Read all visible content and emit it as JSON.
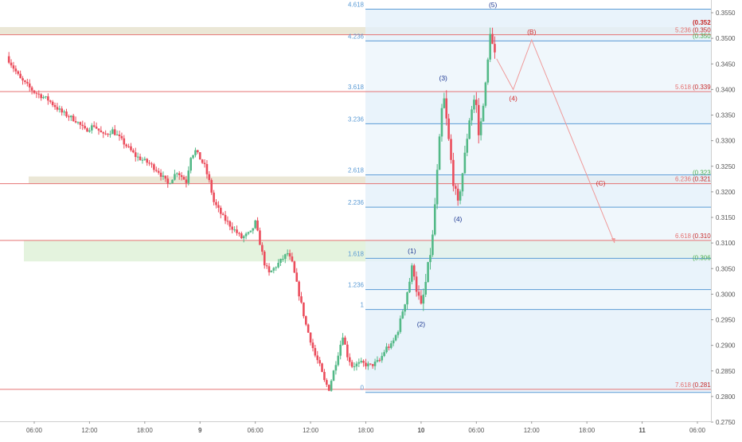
{
  "colors": {
    "up": "#53b987",
    "down": "#eb4d5c",
    "fib": "#5b9bd5",
    "fib_fill": "#e3f0fa",
    "red_line": "#e57373",
    "band_tan": "#e8e3cf",
    "band_green": "#dff1d8",
    "wave_main": "#1f3a93",
    "wave_corr": "#d32f2f",
    "axis_text": "#555555"
  },
  "chart_data": {
    "type": "candlestick",
    "ylim": [
      0.276,
      0.356
    ],
    "y_ticks": [
      0.355,
      0.35,
      0.345,
      0.34,
      0.335,
      0.33,
      0.325,
      0.32,
      0.315,
      0.31,
      0.305,
      0.3,
      0.295,
      0.29,
      0.285,
      0.28,
      0.275
    ],
    "x_ticks": [
      {
        "label": "06:00",
        "t": 0.0
      },
      {
        "label": "12:00",
        "t": 6.0
      },
      {
        "label": "18:00",
        "t": 12.0
      },
      {
        "label": "9",
        "t": 18.0
      },
      {
        "label": "06:00",
        "t": 24.0
      },
      {
        "label": "12:00",
        "t": 30.0
      },
      {
        "label": "18:00",
        "t": 36.0
      },
      {
        "label": "10",
        "t": 42.0
      },
      {
        "label": "06:00",
        "t": 48.0
      },
      {
        "label": "12:00",
        "t": 54.0
      },
      {
        "label": "18:00",
        "t": 60.0
      },
      {
        "label": "11",
        "t": 66.0
      },
      {
        "label": "06:00",
        "t": 72.0
      }
    ],
    "price_path": [
      [
        -3.0,
        0.3465
      ],
      [
        -1.5,
        0.342
      ],
      [
        0.0,
        0.3395
      ],
      [
        1.5,
        0.338
      ],
      [
        3.0,
        0.3355
      ],
      [
        4.5,
        0.334
      ],
      [
        5.5,
        0.332
      ],
      [
        6.5,
        0.333
      ],
      [
        7.5,
        0.331
      ],
      [
        8.5,
        0.332
      ],
      [
        10.0,
        0.329
      ],
      [
        11.0,
        0.327
      ],
      [
        12.5,
        0.3255
      ],
      [
        13.5,
        0.324
      ],
      [
        14.5,
        0.3215
      ],
      [
        15.5,
        0.324
      ],
      [
        16.5,
        0.322
      ],
      [
        17.0,
        0.327
      ],
      [
        17.5,
        0.328
      ],
      [
        18.5,
        0.325
      ],
      [
        19.0,
        0.322
      ],
      [
        19.5,
        0.318
      ],
      [
        20.5,
        0.315
      ],
      [
        21.5,
        0.313
      ],
      [
        22.5,
        0.311
      ],
      [
        23.5,
        0.312
      ],
      [
        24.0,
        0.314
      ],
      [
        24.5,
        0.31
      ],
      [
        25.0,
        0.306
      ],
      [
        25.5,
        0.304
      ],
      [
        26.5,
        0.306
      ],
      [
        27.5,
        0.308
      ],
      [
        28.0,
        0.306
      ],
      [
        28.5,
        0.302
      ],
      [
        29.0,
        0.298
      ],
      [
        29.5,
        0.294
      ],
      [
        30.0,
        0.291
      ],
      [
        30.5,
        0.288
      ],
      [
        31.0,
        0.286
      ],
      [
        31.5,
        0.283
      ],
      [
        32.0,
        0.2815
      ],
      [
        32.8,
        0.287
      ],
      [
        33.5,
        0.292
      ],
      [
        34.0,
        0.288
      ],
      [
        34.5,
        0.286
      ],
      [
        35.5,
        0.2865
      ],
      [
        36.5,
        0.286
      ],
      [
        37.5,
        0.287
      ],
      [
        38.2,
        0.2895
      ],
      [
        38.8,
        0.29
      ],
      [
        39.5,
        0.293
      ],
      [
        40.3,
        0.299
      ],
      [
        40.8,
        0.303
      ],
      [
        41.1,
        0.306
      ],
      [
        41.5,
        0.301
      ],
      [
        42.0,
        0.2975
      ],
      [
        42.4,
        0.301
      ],
      [
        42.8,
        0.306
      ],
      [
        43.2,
        0.31
      ],
      [
        43.6,
        0.32
      ],
      [
        44.0,
        0.33
      ],
      [
        44.4,
        0.3395
      ],
      [
        45.0,
        0.33
      ],
      [
        45.5,
        0.322
      ],
      [
        46.0,
        0.3175
      ],
      [
        46.6,
        0.325
      ],
      [
        47.3,
        0.335
      ],
      [
        47.9,
        0.339
      ],
      [
        48.3,
        0.33
      ],
      [
        48.7,
        0.337
      ],
      [
        49.1,
        0.342
      ],
      [
        49.5,
        0.3515
      ],
      [
        49.9,
        0.347
      ],
      [
        50.2,
        0.346
      ]
    ],
    "fib_extension": {
      "levels": [
        {
          "label": "4.618",
          "price": 0.3557
        },
        {
          "label": "4.236",
          "price": 0.3495
        },
        {
          "label": "3.618",
          "price": 0.3396
        },
        {
          "label": "3.236",
          "price": 0.3333
        },
        {
          "label": "2.618",
          "price": 0.3233
        },
        {
          "label": "2.236",
          "price": 0.317
        },
        {
          "label": "1.618",
          "price": 0.307
        },
        {
          "label": "1.236",
          "price": 0.3009
        },
        {
          "label": "1",
          "price": 0.297
        },
        {
          "label": "0",
          "price": 0.2808
        }
      ]
    },
    "red_levels": [
      {
        "label": "5.236",
        "value_label": "(0.3507)",
        "price": 0.3507
      },
      {
        "label": "5.618",
        "value_label": "(0.3396)",
        "price": 0.3396
      },
      {
        "label": "6.236",
        "value_label": "(0.3216)",
        "price": 0.3216
      },
      {
        "label": "6.618",
        "value_label": "(0.3105)",
        "price": 0.3105
      },
      {
        "label": "7.618",
        "value_label": "(0.2814)",
        "price": 0.2814
      }
    ],
    "green_labels": [
      {
        "value_label": "(0.3507)",
        "price": 0.3497
      },
      {
        "value_label": "(0.3230)",
        "price": 0.323
      },
      {
        "value_label": "(0.3064)",
        "price": 0.3064
      }
    ],
    "top_label": {
      "value_label": "(0.3522)",
      "price": 0.3522
    },
    "zones": [
      {
        "kind": "tan",
        "p_top": 0.3522,
        "p_bottom": 0.3507
      },
      {
        "kind": "tan",
        "p_top": 0.323,
        "p_bottom": 0.3216
      },
      {
        "kind": "green",
        "p_top": 0.3105,
        "p_bottom": 0.3064
      }
    ],
    "waves": [
      {
        "label": "(1)",
        "t": 41.0,
        "price": 0.308,
        "kind": "main"
      },
      {
        "label": "(2)",
        "t": 42.0,
        "price": 0.2937,
        "kind": "main"
      },
      {
        "label": "(3)",
        "t": 44.4,
        "price": 0.3418,
        "kind": "main"
      },
      {
        "label": "(4)",
        "t": 46.0,
        "price": 0.3142,
        "kind": "main"
      },
      {
        "label": "(5)",
        "t": 49.8,
        "price": 0.3561,
        "kind": "main"
      },
      {
        "label": "(4)",
        "t": 52.0,
        "price": 0.3378,
        "kind": "corr"
      },
      {
        "label": "(B)",
        "t": 54.0,
        "price": 0.3508,
        "kind": "corr"
      },
      {
        "label": "(C)",
        "t": 61.5,
        "price": 0.3212,
        "kind": "corr"
      }
    ],
    "projection": [
      [
        50.2,
        0.346
      ],
      [
        52.0,
        0.34
      ],
      [
        54.0,
        0.3497
      ],
      [
        63.0,
        0.31
      ]
    ]
  }
}
